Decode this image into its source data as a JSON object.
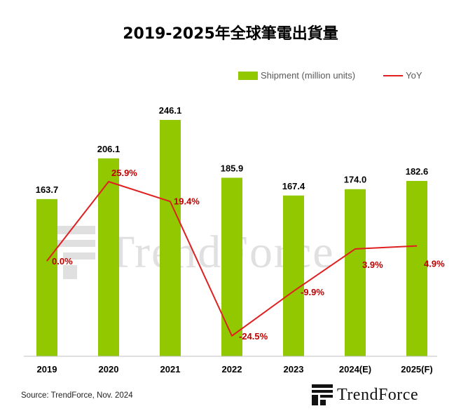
{
  "header": {
    "title": "2019-2025年全球筆電出貨量"
  },
  "legend": {
    "bar_label": "Shipment (million units)",
    "line_label": "YoY"
  },
  "footer": {
    "source": "Source: TrendForce, Nov. 2024",
    "logo_text": "TrendForce"
  },
  "watermark": {
    "text": "TrendForce"
  },
  "colors": {
    "bar": "#92c800",
    "line": "#e02020",
    "yoy_label": "#c00000",
    "axis": "#bfbfbf"
  },
  "chart_data": {
    "type": "bar",
    "title": "2019-2025年全球筆電出貨量",
    "categories": [
      "2019",
      "2020",
      "2021",
      "2022",
      "2023",
      "2024(E)",
      "2025(F)"
    ],
    "series": [
      {
        "name": "Shipment (million units)",
        "type": "bar",
        "values": [
          163.7,
          206.1,
          246.1,
          185.9,
          167.4,
          174.0,
          182.6
        ]
      },
      {
        "name": "YoY",
        "type": "line",
        "values": [
          0.0,
          25.9,
          19.4,
          -24.5,
          -9.9,
          3.9,
          4.9
        ]
      }
    ],
    "bar_labels": [
      "163.7",
      "206.1",
      "246.1",
      "185.9",
      "167.4",
      "174.0",
      "182.6"
    ],
    "yoy_labels": [
      "0.0%",
      "25.9%",
      "19.4%",
      "-24.5%",
      "-9.9%",
      "3.9%",
      "4.9%"
    ],
    "legend_position": "top-right",
    "grid": false
  }
}
